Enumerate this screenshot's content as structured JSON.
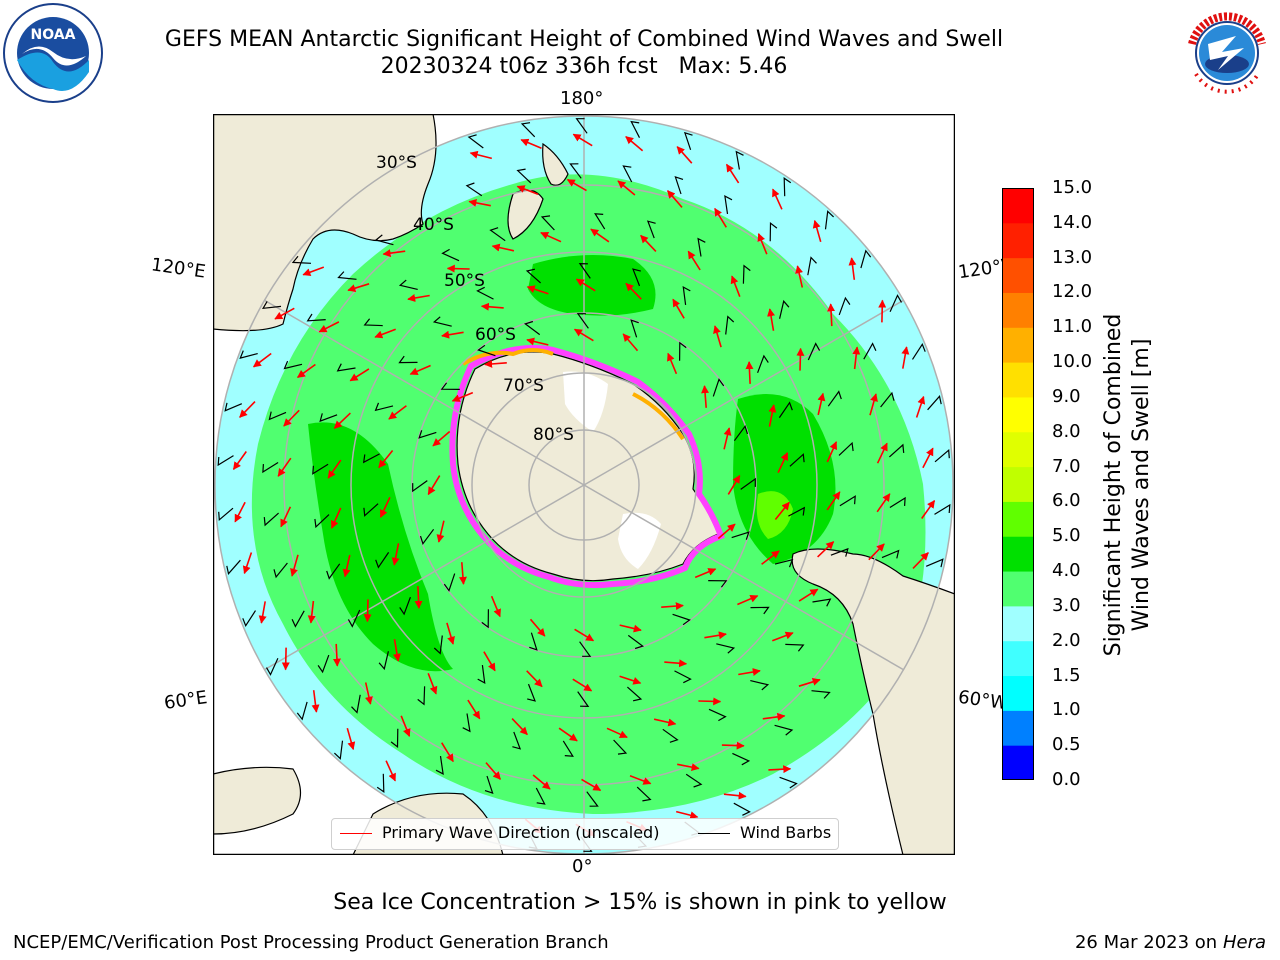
{
  "header": {
    "title_line1": "GEFS MEAN Antarctic Significant Height of Combined Wind Waves and Swell",
    "title_line2": "20230324 t06z 336h fcst   Max: 5.46"
  },
  "logos": {
    "noaa_text": "NOAA",
    "noaa_ring": "NATIONAL OCEANIC AND ATMOSPHERIC ADMINISTRATION · U.S. DEPARTMENT OF COMMERCE",
    "nws_ring": "NATIONAL WEATHER SERVICE"
  },
  "map": {
    "longitude_labels": {
      "top": "180°",
      "bottom": "0°",
      "left_upper": "120°E",
      "left_lower": "60°E",
      "right_upper": "120°W",
      "right_lower": "60°W"
    },
    "latitude_labels": [
      "30°S",
      "40°S",
      "50°S",
      "60°S",
      "70°S",
      "80°S"
    ],
    "legend": {
      "primary_wave": "Primary Wave Direction (unscaled)",
      "wind_barbs": "Wind Barbs"
    }
  },
  "colorbar": {
    "label_line1": "Significant Height of Combined",
    "label_line2": "Wind Waves and Swell [m]",
    "ticks": [
      "15.0",
      "14.0",
      "13.0",
      "12.0",
      "11.0",
      "10.0",
      "9.0",
      "8.0",
      "7.0",
      "6.0",
      "5.0",
      "4.0",
      "3.0",
      "2.0",
      "1.5",
      "1.0",
      "0.5",
      "0.0"
    ],
    "colors_bottom_to_top": [
      "#0000ff",
      "#0080ff",
      "#00ffff",
      "#40ffff",
      "#a0ffff",
      "#50ff70",
      "#00e000",
      "#60ff00",
      "#c0ff00",
      "#e0ff00",
      "#ffff00",
      "#ffe000",
      "#ffb000",
      "#ff8000",
      "#ff5000",
      "#ff2000",
      "#ff0000"
    ]
  },
  "colors": {
    "land": "#efebd8",
    "ocean_low": "#a0ffff",
    "ocean_mid": "#50ff70",
    "ocean_high": "#00e000",
    "sea_ice": "#ff40ff",
    "arrow": "#ff0000"
  },
  "footer": {
    "note": "Sea Ice Concentration > 15% is shown in pink to yellow",
    "credit_left": "NCEP/EMC/Verification Post Processing Product Generation Branch",
    "credit_date": "26 Mar 2023 on",
    "credit_host": "Hera"
  }
}
